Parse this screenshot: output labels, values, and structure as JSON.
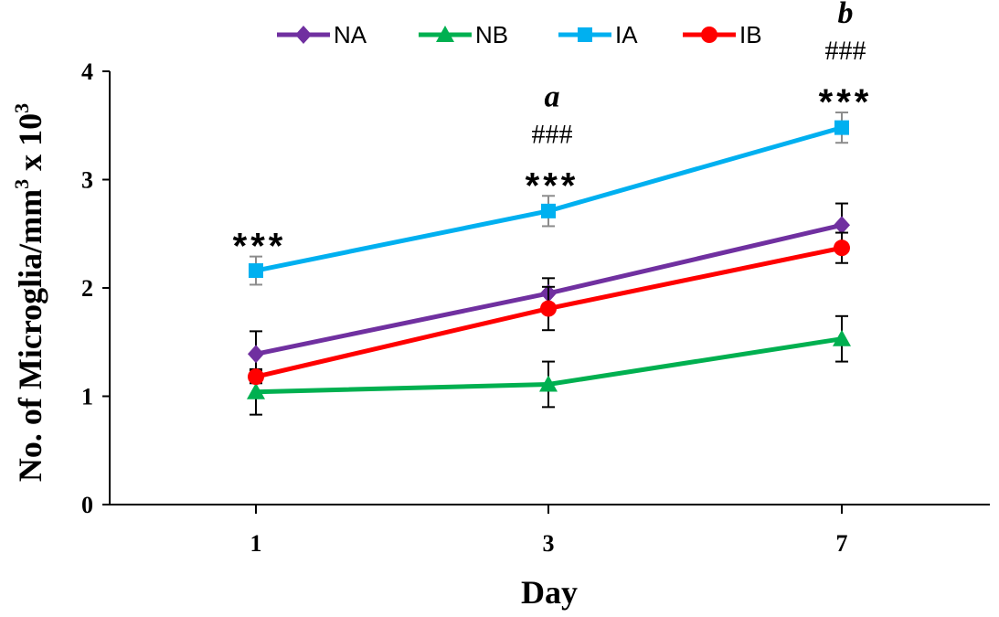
{
  "chart_data": {
    "type": "line",
    "title": "",
    "xlabel": "Day",
    "ylabel": "No. of Microglia/mm",
    "ylabel_sup": "3",
    "ylabel_suffix": " x 10",
    "ylabel_suffix_sup": "3",
    "categories": [
      "1",
      "3",
      "7"
    ],
    "ylim": [
      0,
      4
    ],
    "yticks": [
      0,
      1,
      2,
      3,
      4
    ],
    "grid": false,
    "legend_position": "top",
    "series": [
      {
        "name": "NA",
        "color": "#7030a0",
        "marker": "diamond",
        "values": [
          1.39,
          1.95,
          2.58
        ],
        "errors": [
          0.21,
          0.14,
          0.2
        ]
      },
      {
        "name": "NB",
        "color": "#00b050",
        "marker": "triangle",
        "values": [
          1.04,
          1.11,
          1.53
        ],
        "errors": [
          0.21,
          0.21,
          0.21
        ]
      },
      {
        "name": "IA",
        "color": "#00b0f0",
        "marker": "square",
        "values": [
          2.16,
          2.71,
          3.48
        ],
        "errors": [
          0.13,
          0.14,
          0.14
        ]
      },
      {
        "name": "IB",
        "color": "#ff0000",
        "marker": "circle",
        "values": [
          1.18,
          1.81,
          2.37
        ],
        "errors": [
          0.06,
          0.2,
          0.14
        ]
      }
    ],
    "annotations": [
      {
        "category": "1",
        "lines": [
          "***"
        ]
      },
      {
        "category": "3",
        "lines": [
          "a",
          "###",
          "***"
        ]
      },
      {
        "category": "7",
        "lines": [
          "b",
          "###",
          "***"
        ]
      }
    ]
  }
}
